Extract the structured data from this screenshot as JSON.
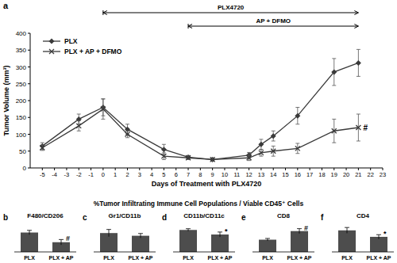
{
  "figure_title": "%Tumor Infiltrating Immune Cell Populations / Viable CD45⁺ Cells",
  "chart_data": [
    {
      "type": "line",
      "panel": "a",
      "x_label": "Days of Treatment with PLX4720",
      "y_label": "Tumor Volume (mm³)",
      "xlim": [
        -6,
        23
      ],
      "xticks": [
        -5,
        -4,
        -3,
        -2,
        -1,
        0,
        1,
        2,
        3,
        4,
        5,
        6,
        7,
        8,
        9,
        10,
        11,
        12,
        13,
        14,
        15,
        16,
        17,
        18,
        19,
        20,
        21,
        22,
        23
      ],
      "ylim": [
        0,
        400
      ],
      "yticks": [
        0,
        50,
        100,
        150,
        200,
        250,
        300,
        350,
        400
      ],
      "legend": "upper left",
      "series": [
        {
          "name": "PLX",
          "color": "#3a3a3a",
          "marker": "diamond",
          "line_style": "solid",
          "x": [
            -5,
            -2,
            0,
            2,
            5,
            7,
            9,
            12,
            13,
            14,
            16,
            19,
            21
          ],
          "values": [
            65,
            145,
            180,
            115,
            55,
            32,
            25,
            38,
            70,
            95,
            155,
            285,
            312
          ],
          "errors": [
            10,
            15,
            25,
            15,
            15,
            5,
            5,
            8,
            15,
            15,
            25,
            40,
            40
          ]
        },
        {
          "name": "PLX + AP + DFMO",
          "color": "#3a3a3a",
          "marker": "x",
          "line_style": "solid",
          "x": [
            -5,
            -2,
            0,
            2,
            5,
            7,
            9,
            12,
            13,
            14,
            16,
            19,
            21
          ],
          "values": [
            60,
            125,
            175,
            100,
            35,
            30,
            25,
            30,
            45,
            50,
            58,
            110,
            120
          ],
          "errors": [
            8,
            15,
            30,
            10,
            10,
            5,
            5,
            8,
            10,
            15,
            15,
            35,
            40
          ]
        }
      ],
      "annotations": [
        {
          "text": "PLX4720",
          "x_start": 0,
          "x_end": 21
        },
        {
          "text": "AP + DFMO",
          "x_start": 7,
          "x_end": 21
        },
        {
          "text": "#",
          "series": 1
        }
      ]
    },
    {
      "type": "bar",
      "panel": "b",
      "title": "F480/CD206",
      "categories": [
        "PLX",
        "PLX + AP"
      ],
      "values": [
        18,
        9
      ],
      "errors": [
        2,
        2.5
      ],
      "color": "#4d4d4d",
      "ylim": [
        0,
        25
      ],
      "tick_labels": "x",
      "annotation": {
        "text": "#",
        "category": 1
      }
    },
    {
      "type": "bar",
      "panel": "c",
      "title": "Gr1/CD11b",
      "categories": [
        "PLX",
        "PLX + AP"
      ],
      "values": [
        21,
        18
      ],
      "errors": [
        4,
        2.5
      ],
      "color": "#4d4d4d",
      "ylim": [
        0,
        30
      ],
      "tick_labels": "x"
    },
    {
      "type": "bar",
      "panel": "d",
      "title": "CD11b/CD11c",
      "categories": [
        "PLX",
        "PLX + AP"
      ],
      "values": [
        53,
        42
      ],
      "errors": [
        3,
        6
      ],
      "color": "#4d4d4d",
      "ylim": [
        0,
        65
      ],
      "tick_labels": "x",
      "annotation": {
        "text": "*",
        "category": 1
      }
    },
    {
      "type": "bar",
      "panel": "e",
      "title": "CD8",
      "categories": [
        "PLX",
        "PLX + AP"
      ],
      "values": [
        10,
        17
      ],
      "errors": [
        1,
        2
      ],
      "color": "#4d4d4d",
      "ylim": [
        0,
        22
      ],
      "tick_labels": "x",
      "annotation": {
        "text": "#",
        "category": 1
      }
    },
    {
      "type": "bar",
      "panel": "f",
      "title": "CD4",
      "categories": [
        "PLX",
        "PLX + AP"
      ],
      "values": [
        6,
        4.2
      ],
      "errors": [
        0.8,
        0.6
      ],
      "color": "#4d4d4d",
      "ylim": [
        0,
        7.5
      ],
      "tick_labels": "x",
      "annotation": {
        "text": "*",
        "category": 1
      }
    }
  ]
}
